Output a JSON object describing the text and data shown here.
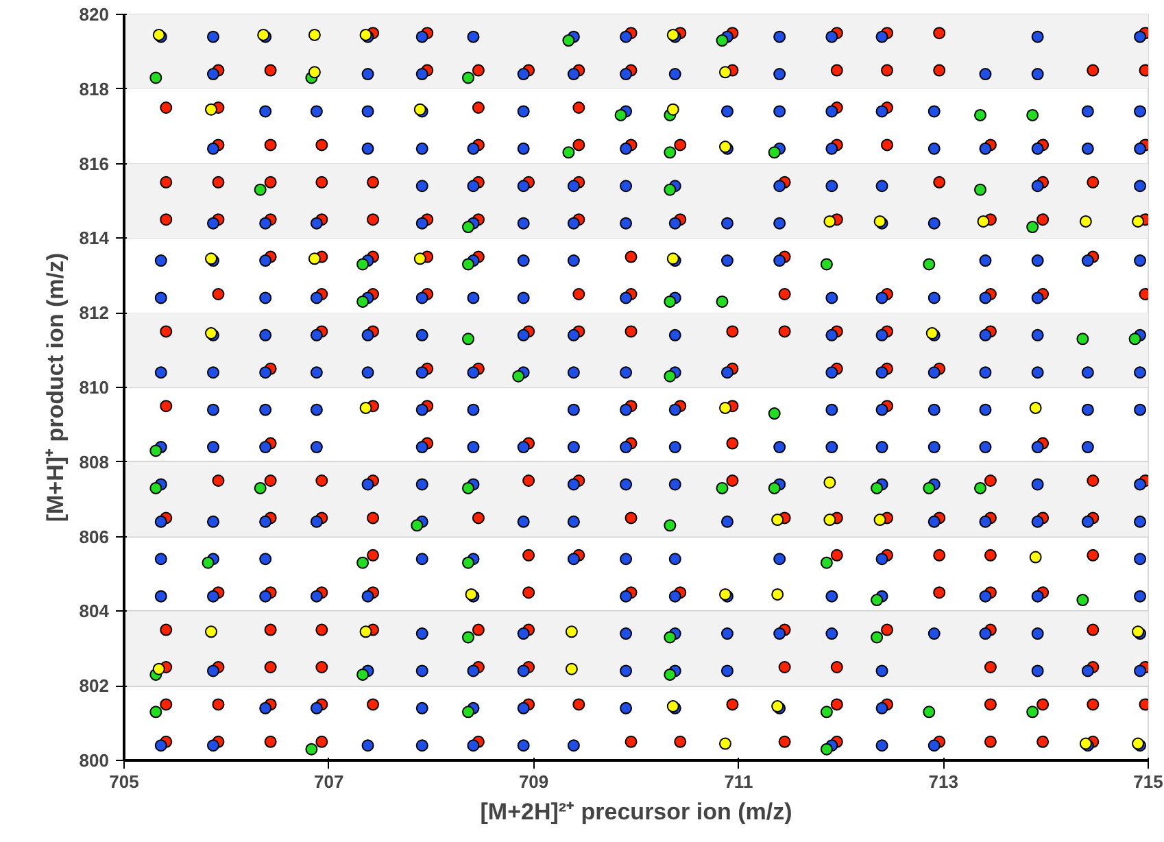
{
  "chart_data": {
    "type": "scatter",
    "xlabel": "[M+2H]²⁺ precursor ion (m/z)",
    "ylabel": "[M+H]⁺ product ion (m/z)",
    "xlim": [
      705,
      715
    ],
    "xticks": [
      705,
      707,
      709,
      711,
      713,
      715
    ],
    "ylim": [
      800,
      820
    ],
    "yticks": [
      800,
      802,
      804,
      806,
      808,
      810,
      812,
      814,
      816,
      818,
      820
    ],
    "grid": "y",
    "marker": "circle",
    "bands": [
      {
        "axis": "y",
        "from": 802,
        "to": 804,
        "color": "#f2f2f2"
      },
      {
        "axis": "y",
        "from": 806,
        "to": 808,
        "color": "#f2f2f2"
      },
      {
        "axis": "y",
        "from": 810,
        "to": 812,
        "color": "#f2f2f2"
      },
      {
        "axis": "y",
        "from": 814,
        "to": 816,
        "color": "#f2f2f2"
      },
      {
        "axis": "y",
        "from": 818,
        "to": 820,
        "color": "#f2f2f2"
      }
    ],
    "series": [
      {
        "color": "#ff2200",
        "x": [
          707.43,
          707.96,
          709.95,
          710.43,
          710.94,
          711.96,
          712.45,
          712.96,
          714.97,
          705.92,
          706.43,
          707.96,
          708.46,
          708.95,
          709.44,
          709.95,
          710.94,
          711.96,
          712.45,
          712.96,
          714.46,
          714.97,
          705.41,
          705.92,
          708.46,
          709.44,
          711.96,
          712.45,
          705.92,
          706.43,
          706.93,
          708.46,
          709.44,
          709.95,
          710.43,
          711.96,
          712.45,
          713.46,
          713.97,
          714.97,
          705.41,
          705.92,
          706.43,
          706.93,
          707.43,
          708.46,
          708.95,
          709.44,
          711.45,
          712.96,
          713.97,
          714.46,
          705.41,
          705.92,
          706.43,
          706.93,
          707.43,
          707.96,
          708.46,
          709.44,
          710.43,
          711.96,
          713.46,
          713.97,
          714.97,
          706.43,
          706.93,
          707.43,
          707.96,
          708.46,
          709.95,
          711.45,
          714.46,
          705.92,
          706.93,
          707.43,
          707.96,
          709.44,
          709.95,
          711.45,
          712.45,
          713.46,
          713.97,
          714.97,
          705.41,
          706.93,
          707.43,
          708.95,
          709.44,
          709.95,
          710.94,
          711.45,
          711.96,
          712.45,
          713.46,
          706.43,
          707.96,
          708.46,
          710.94,
          711.96,
          712.45,
          712.96,
          705.41,
          707.43,
          707.96,
          709.95,
          710.43,
          710.94,
          712.45,
          706.43,
          707.96,
          708.95,
          709.95,
          710.94,
          713.97,
          705.92,
          706.43,
          706.93,
          707.43,
          708.95,
          709.44,
          710.94,
          713.46,
          714.46,
          714.97,
          705.41,
          706.43,
          706.93,
          707.43,
          708.46,
          709.95,
          711.45,
          711.96,
          712.45,
          712.96,
          713.46,
          713.97,
          714.46,
          707.43,
          708.95,
          709.44,
          711.96,
          712.45,
          712.96,
          713.46,
          714.46,
          705.92,
          706.43,
          706.93,
          707.43,
          708.95,
          709.95,
          710.43,
          712.96,
          713.46,
          713.97,
          705.41,
          706.43,
          706.93,
          707.43,
          708.46,
          708.95,
          711.45,
          712.45,
          713.46,
          714.46,
          705.41,
          705.92,
          706.43,
          706.93,
          708.46,
          708.95,
          711.45,
          711.96,
          713.46,
          714.46,
          714.97,
          705.41,
          705.92,
          706.43,
          706.93,
          707.43,
          708.95,
          709.44,
          710.94,
          711.96,
          712.45,
          713.46,
          713.97,
          714.46,
          714.97,
          705.41,
          705.92,
          706.43,
          706.93,
          708.46,
          709.95,
          710.43,
          711.45,
          711.96,
          712.96,
          713.46,
          713.97,
          714.46
        ],
        "values": [
          819.5,
          819.5,
          819.5,
          819.5,
          819.5,
          819.5,
          819.5,
          819.5,
          819.5,
          818.5,
          818.5,
          818.5,
          818.5,
          818.5,
          818.5,
          818.5,
          818.5,
          818.5,
          818.5,
          818.5,
          818.5,
          818.5,
          817.5,
          817.5,
          817.5,
          817.5,
          817.5,
          817.5,
          816.5,
          816.5,
          816.5,
          816.5,
          816.5,
          816.5,
          816.5,
          816.5,
          816.5,
          816.5,
          816.5,
          816.5,
          815.5,
          815.5,
          815.5,
          815.5,
          815.5,
          815.5,
          815.5,
          815.5,
          815.5,
          815.5,
          815.5,
          815.5,
          814.5,
          814.5,
          814.5,
          814.5,
          814.5,
          814.5,
          814.5,
          814.5,
          814.5,
          814.5,
          814.5,
          814.5,
          814.5,
          813.5,
          813.5,
          813.5,
          813.5,
          813.5,
          813.5,
          813.5,
          813.5,
          812.5,
          812.5,
          812.5,
          812.5,
          812.5,
          812.5,
          812.5,
          812.5,
          812.5,
          812.5,
          812.5,
          811.5,
          811.5,
          811.5,
          811.5,
          811.5,
          811.5,
          811.5,
          811.5,
          811.5,
          811.5,
          811.5,
          810.5,
          810.5,
          810.5,
          810.5,
          810.5,
          810.5,
          810.5,
          809.5,
          809.5,
          809.5,
          809.5,
          809.5,
          809.5,
          809.5,
          808.5,
          808.5,
          808.5,
          808.5,
          808.5,
          808.5,
          807.5,
          807.5,
          807.5,
          807.5,
          807.5,
          807.5,
          807.5,
          807.5,
          807.5,
          807.5,
          806.5,
          806.5,
          806.5,
          806.5,
          806.5,
          806.5,
          806.5,
          806.5,
          806.5,
          806.5,
          806.5,
          806.5,
          806.5,
          805.5,
          805.5,
          805.5,
          805.5,
          805.5,
          805.5,
          805.5,
          805.5,
          804.5,
          804.5,
          804.5,
          804.5,
          804.5,
          804.5,
          804.5,
          804.5,
          804.5,
          804.5,
          803.5,
          803.5,
          803.5,
          803.5,
          803.5,
          803.5,
          803.5,
          803.5,
          803.5,
          803.5,
          802.5,
          802.5,
          802.5,
          802.5,
          802.5,
          802.5,
          802.5,
          802.5,
          802.5,
          802.5,
          802.5,
          801.5,
          801.5,
          801.5,
          801.5,
          801.5,
          801.5,
          801.5,
          801.5,
          801.5,
          801.5,
          801.5,
          801.5,
          801.5,
          801.5,
          800.5,
          800.5,
          800.5,
          800.5,
          800.5,
          800.5,
          800.5,
          800.5,
          800.5,
          800.5,
          800.5,
          800.5,
          800.5
        ]
      },
      {
        "color": "#1f4fe6",
        "x": [
          705.36,
          705.87,
          706.38,
          707.38,
          707.91,
          708.41,
          709.39,
          709.9,
          710.38,
          710.89,
          711.4,
          711.91,
          712.4,
          713.92,
          714.92,
          705.87,
          707.38,
          707.91,
          708.9,
          709.39,
          709.9,
          710.38,
          711.4,
          713.41,
          713.92,
          706.38,
          706.88,
          707.38,
          707.91,
          708.9,
          709.9,
          710.89,
          711.4,
          711.91,
          712.4,
          712.91,
          714.41,
          714.92,
          705.87,
          707.38,
          707.91,
          708.41,
          708.9,
          709.9,
          710.89,
          711.4,
          711.91,
          712.91,
          713.41,
          713.92,
          714.41,
          714.92,
          707.91,
          708.41,
          708.9,
          709.39,
          709.9,
          710.38,
          711.4,
          711.91,
          712.4,
          713.92,
          714.92,
          705.87,
          706.38,
          706.88,
          707.91,
          708.41,
          708.9,
          709.39,
          709.9,
          710.38,
          710.89,
          711.4,
          712.4,
          712.91,
          705.36,
          705.87,
          706.38,
          707.38,
          708.41,
          708.9,
          709.39,
          710.38,
          710.89,
          711.4,
          713.41,
          713.92,
          714.41,
          714.92,
          705.36,
          706.38,
          706.88,
          707.38,
          707.91,
          708.41,
          708.9,
          709.9,
          710.38,
          711.91,
          712.4,
          712.91,
          713.41,
          713.92,
          705.87,
          706.38,
          706.88,
          707.38,
          707.91,
          708.9,
          709.39,
          710.38,
          711.91,
          712.4,
          712.91,
          713.41,
          713.92,
          714.92,
          705.36,
          705.87,
          706.38,
          706.88,
          707.38,
          707.91,
          708.41,
          708.9,
          709.39,
          709.9,
          710.38,
          710.89,
          711.91,
          712.4,
          712.91,
          713.41,
          713.92,
          714.41,
          714.92,
          705.87,
          706.38,
          706.88,
          707.91,
          708.41,
          709.39,
          709.9,
          710.38,
          711.91,
          712.4,
          712.91,
          713.41,
          714.41,
          714.92,
          705.36,
          705.87,
          706.38,
          706.88,
          707.91,
          708.41,
          708.9,
          709.39,
          709.9,
          710.38,
          711.4,
          711.91,
          712.4,
          712.91,
          713.41,
          713.92,
          714.41,
          705.36,
          707.38,
          707.91,
          708.41,
          709.39,
          709.9,
          710.38,
          711.4,
          712.4,
          712.91,
          713.92,
          714.92,
          705.36,
          705.87,
          706.38,
          706.88,
          707.91,
          708.9,
          709.39,
          710.89,
          712.91,
          713.41,
          713.92,
          714.41,
          714.92,
          705.36,
          705.87,
          706.38,
          707.91,
          708.41,
          709.39,
          709.9,
          710.38,
          711.4,
          712.4,
          714.92,
          705.36,
          705.87,
          706.38,
          706.88,
          707.38,
          708.41,
          709.9,
          710.38,
          710.89,
          711.91,
          712.4,
          713.41,
          713.92,
          714.92,
          707.91,
          708.9,
          709.9,
          710.38,
          710.89,
          711.4,
          711.91,
          712.91,
          713.41,
          713.92,
          714.92,
          705.87,
          707.38,
          707.91,
          708.41,
          708.9,
          709.9,
          710.38,
          710.89,
          712.4,
          713.92,
          714.41,
          714.92,
          706.38,
          706.88,
          707.91,
          708.41,
          708.9,
          709.9,
          710.38,
          711.4,
          712.4,
          705.36,
          705.87,
          707.38,
          707.91,
          708.41,
          708.9,
          709.39,
          711.91,
          712.4,
          712.91,
          714.41,
          714.92
        ],
        "values": [
          819.4,
          819.4,
          819.4,
          819.4,
          819.4,
          819.4,
          819.4,
          819.4,
          819.4,
          819.4,
          819.4,
          819.4,
          819.4,
          819.4,
          819.4,
          818.4,
          818.4,
          818.4,
          818.4,
          818.4,
          818.4,
          818.4,
          818.4,
          818.4,
          818.4,
          817.4,
          817.4,
          817.4,
          817.4,
          817.4,
          817.4,
          817.4,
          817.4,
          817.4,
          817.4,
          817.4,
          817.4,
          817.4,
          816.4,
          816.4,
          816.4,
          816.4,
          816.4,
          816.4,
          816.4,
          816.4,
          816.4,
          816.4,
          816.4,
          816.4,
          816.4,
          816.4,
          815.4,
          815.4,
          815.4,
          815.4,
          815.4,
          815.4,
          815.4,
          815.4,
          815.4,
          815.4,
          815.4,
          814.4,
          814.4,
          814.4,
          814.4,
          814.4,
          814.4,
          814.4,
          814.4,
          814.4,
          814.4,
          814.4,
          814.4,
          814.4,
          813.4,
          813.4,
          813.4,
          813.4,
          813.4,
          813.4,
          813.4,
          813.4,
          813.4,
          813.4,
          813.4,
          813.4,
          813.4,
          813.4,
          812.4,
          812.4,
          812.4,
          812.4,
          812.4,
          812.4,
          812.4,
          812.4,
          812.4,
          812.4,
          812.4,
          812.4,
          812.4,
          812.4,
          811.4,
          811.4,
          811.4,
          811.4,
          811.4,
          811.4,
          811.4,
          811.4,
          811.4,
          811.4,
          811.4,
          811.4,
          811.4,
          811.4,
          810.4,
          810.4,
          810.4,
          810.4,
          810.4,
          810.4,
          810.4,
          810.4,
          810.4,
          810.4,
          810.4,
          810.4,
          810.4,
          810.4,
          810.4,
          810.4,
          810.4,
          810.4,
          810.4,
          809.4,
          809.4,
          809.4,
          809.4,
          809.4,
          809.4,
          809.4,
          809.4,
          809.4,
          809.4,
          809.4,
          809.4,
          809.4,
          809.4,
          808.4,
          808.4,
          808.4,
          808.4,
          808.4,
          808.4,
          808.4,
          808.4,
          808.4,
          808.4,
          808.4,
          808.4,
          808.4,
          808.4,
          808.4,
          808.4,
          808.4,
          807.4,
          807.4,
          807.4,
          807.4,
          807.4,
          807.4,
          807.4,
          807.4,
          807.4,
          807.4,
          807.4,
          807.4,
          806.4,
          806.4,
          806.4,
          806.4,
          806.4,
          806.4,
          806.4,
          806.4,
          806.4,
          806.4,
          806.4,
          806.4,
          806.4,
          805.4,
          805.4,
          805.4,
          805.4,
          805.4,
          805.4,
          805.4,
          805.4,
          805.4,
          805.4,
          805.4,
          804.4,
          804.4,
          804.4,
          804.4,
          804.4,
          804.4,
          804.4,
          804.4,
          804.4,
          804.4,
          804.4,
          804.4,
          804.4,
          804.4,
          803.4,
          803.4,
          803.4,
          803.4,
          803.4,
          803.4,
          803.4,
          803.4,
          803.4,
          803.4,
          803.4,
          802.4,
          802.4,
          802.4,
          802.4,
          802.4,
          802.4,
          802.4,
          802.4,
          802.4,
          802.4,
          802.4,
          802.4,
          801.4,
          801.4,
          801.4,
          801.4,
          801.4,
          801.4,
          801.4,
          801.4,
          801.4,
          800.4,
          800.4,
          800.4,
          800.4,
          800.4,
          800.4,
          800.4,
          800.4,
          800.4,
          800.4,
          800.4,
          800.4
        ]
      },
      {
        "color": "#22dd22",
        "x": [
          709.34,
          710.84,
          705.31,
          706.83,
          708.36,
          709.85,
          710.33,
          713.36,
          713.87,
          709.34,
          710.33,
          711.35,
          706.33,
          710.33,
          713.36,
          708.36,
          713.87,
          707.33,
          708.36,
          711.86,
          712.86,
          707.33,
          710.33,
          710.84,
          708.36,
          714.36,
          714.87,
          708.85,
          710.33,
          711.35,
          705.31,
          705.31,
          706.33,
          708.36,
          710.84,
          711.35,
          712.35,
          712.86,
          713.36,
          707.86,
          710.33,
          705.82,
          707.33,
          708.36,
          711.86,
          712.35,
          714.36,
          708.36,
          710.33,
          712.35,
          705.31,
          707.33,
          710.33,
          705.31,
          708.36,
          711.86,
          712.86,
          713.87,
          706.83,
          711.86
        ],
        "values": [
          819.3,
          819.3,
          818.3,
          818.3,
          818.3,
          817.3,
          817.3,
          817.3,
          817.3,
          816.3,
          816.3,
          816.3,
          815.3,
          815.3,
          815.3,
          814.3,
          814.3,
          813.3,
          813.3,
          813.3,
          813.3,
          812.3,
          812.3,
          812.3,
          811.3,
          811.3,
          811.3,
          810.3,
          810.3,
          809.3,
          808.3,
          807.3,
          807.3,
          807.3,
          807.3,
          807.3,
          807.3,
          807.3,
          807.3,
          806.3,
          806.3,
          805.3,
          805.3,
          805.3,
          805.3,
          804.3,
          804.3,
          803.3,
          803.3,
          803.3,
          802.3,
          802.3,
          802.3,
          801.3,
          801.3,
          801.3,
          801.3,
          801.3,
          800.3,
          800.3
        ]
      },
      {
        "color": "#ffff00",
        "x": [
          705.34,
          706.36,
          706.86,
          707.36,
          710.36,
          706.86,
          710.87,
          705.85,
          707.89,
          710.36,
          710.87,
          711.89,
          712.38,
          713.39,
          714.39,
          714.9,
          705.85,
          706.86,
          707.89,
          710.36,
          705.85,
          712.89,
          707.36,
          710.87,
          713.9,
          711.89,
          711.38,
          711.89,
          712.38,
          713.9,
          708.39,
          710.87,
          711.38,
          705.85,
          707.36,
          709.37,
          714.9,
          705.34,
          709.37,
          710.36,
          711.38,
          710.87,
          714.39,
          714.9
        ],
        "values": [
          819.45,
          819.45,
          819.45,
          819.45,
          819.45,
          818.45,
          818.45,
          817.45,
          817.45,
          817.45,
          816.45,
          814.45,
          814.45,
          814.45,
          814.45,
          814.45,
          813.45,
          813.45,
          813.45,
          813.45,
          811.45,
          811.45,
          809.45,
          809.45,
          809.45,
          807.45,
          806.45,
          806.45,
          806.45,
          805.45,
          804.45,
          804.45,
          804.45,
          803.45,
          803.45,
          803.45,
          803.45,
          802.45,
          802.45,
          801.45,
          801.45,
          800.45,
          800.45,
          800.45
        ]
      }
    ]
  }
}
